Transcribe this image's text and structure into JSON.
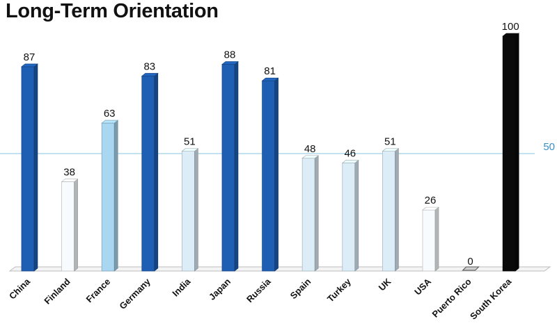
{
  "title": "Long-Term Orientation",
  "colors": {
    "dark_blue": "#1f5fb3",
    "light_blue": "#a9d6f0",
    "pale": "#dcedf8",
    "white": "#f7fbfd",
    "black": "#0a0a0a",
    "reference_line": "#9fd0e6"
  },
  "chart_data": {
    "type": "bar",
    "title": "Long-Term Orientation",
    "xlabel": "",
    "ylabel": "",
    "ylim": [
      0,
      100
    ],
    "grid": false,
    "reference_line": {
      "value": 50,
      "label": "50"
    },
    "categories": [
      "China",
      "Finland",
      "France",
      "Germany",
      "India",
      "Japan",
      "Russia",
      "Spain",
      "Turkey",
      "UK",
      "USA",
      "Puerto Rico",
      "South Korea"
    ],
    "values": [
      87,
      38,
      63,
      83,
      51,
      88,
      81,
      48,
      46,
      51,
      26,
      0,
      100
    ],
    "bar_colors": [
      "dark_blue",
      "white",
      "light_blue",
      "dark_blue",
      "pale",
      "dark_blue",
      "dark_blue",
      "pale",
      "pale",
      "pale",
      "white",
      "pale",
      "black"
    ]
  }
}
